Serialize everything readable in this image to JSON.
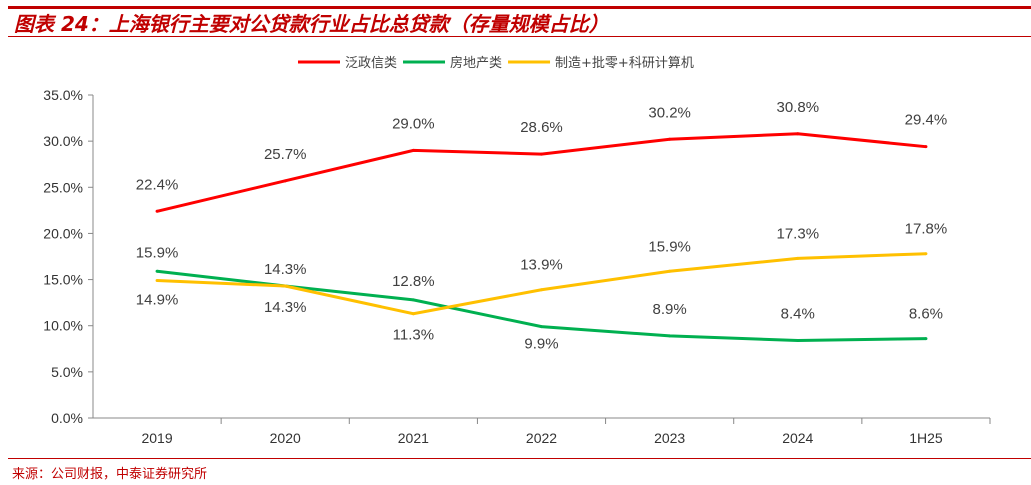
{
  "title": "图表 24：上海银行主要对公贷款行业占比总贷款（存量规模占比）",
  "source": "来源：公司财报，中泰证券研究所",
  "chart_data": {
    "type": "line",
    "categories": [
      "2019",
      "2020",
      "2021",
      "2022",
      "2023",
      "2024",
      "1H25"
    ],
    "ylim": [
      0,
      35
    ],
    "yticks": [
      "0.0%",
      "5.0%",
      "10.0%",
      "15.0%",
      "20.0%",
      "25.0%",
      "30.0%",
      "35.0%"
    ],
    "legend_position": "top",
    "grid": false,
    "series": [
      {
        "name": "泛政信类",
        "color": "#ff0000",
        "values": [
          22.4,
          25.7,
          29.0,
          28.6,
          30.2,
          30.8,
          29.4
        ],
        "labels": [
          "22.4%",
          "25.7%",
          "29.0%",
          "28.6%",
          "30.2%",
          "30.8%",
          "29.4%"
        ]
      },
      {
        "name": "房地产类",
        "color": "#00b050",
        "values": [
          15.9,
          14.3,
          12.8,
          9.9,
          8.9,
          8.4,
          8.6
        ],
        "labels": [
          "15.9%",
          "14.3%",
          "12.8%",
          "9.9%",
          "8.9%",
          "8.4%",
          "8.6%"
        ]
      },
      {
        "name": "制造+批零+科研计算机",
        "color": "#ffc000",
        "values": [
          14.9,
          14.3,
          11.3,
          13.9,
          15.9,
          17.3,
          17.8
        ],
        "labels": [
          "14.9%",
          "14.3%",
          "11.3%",
          "13.9%",
          "15.9%",
          "17.3%",
          "17.8%"
        ]
      }
    ]
  }
}
